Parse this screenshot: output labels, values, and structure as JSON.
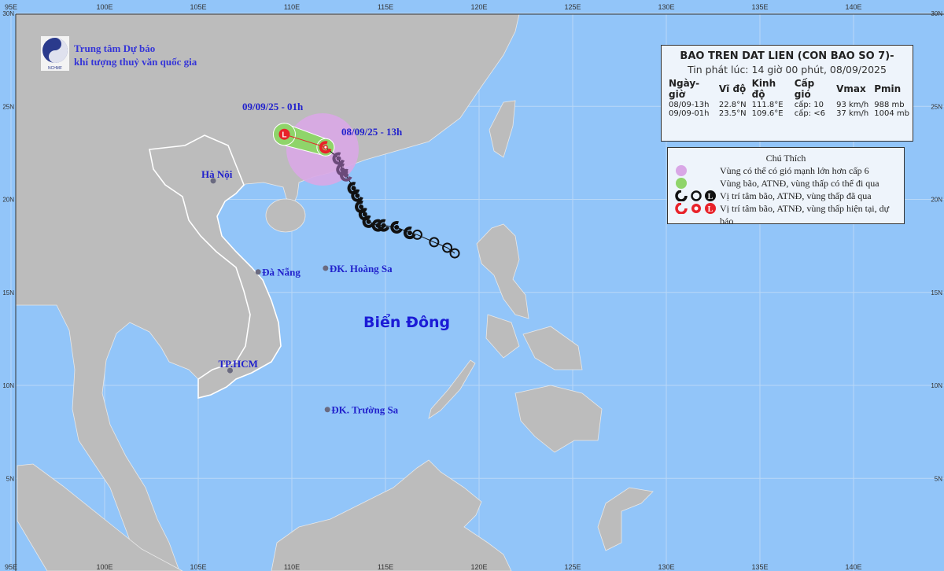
{
  "header": {
    "org_line1": "Trung tâm Dự báo",
    "org_line2": "khí tượng thuỷ văn quốc gia",
    "logo_text": "NCHMF"
  },
  "bulletin": {
    "title": "BAO TREN DAT LIEN (CON BAO SO 7)-",
    "issued": "Tin phát lúc: 14 giờ 00 phút, 08/09/2025",
    "columns": [
      "Ngày-giờ",
      "Vĩ độ",
      "Kinh độ",
      "Cấp gió",
      "Vmax",
      "Pmin"
    ],
    "rows": [
      [
        "08/09-13h",
        "22.8°N",
        "111.8°E",
        "cấp: 10",
        "93 km/h",
        "988 mb"
      ],
      [
        "09/09-01h",
        "23.5°N",
        "109.6°E",
        "cấp: <6",
        "37 km/h",
        "1004 mb"
      ]
    ]
  },
  "legend": {
    "title": "Chú Thích",
    "items": [
      "Vùng có thể có gió mạnh lớn hơn cấp 6",
      "Vùng bão, ATNĐ, vùng thấp có thể đi qua",
      "Vị trí tâm bão, ATNĐ, vùng thấp đã qua",
      "Vị trí tâm bão, ATNĐ, vùng thấp hiện tại, dự báo"
    ]
  },
  "axes": {
    "lon_labels": [
      "95E",
      "100E",
      "105E",
      "110E",
      "115E",
      "120E",
      "125E",
      "130E",
      "135E",
      "140E"
    ],
    "lat_labels": [
      "30N",
      "25N",
      "20N",
      "15N",
      "10N",
      "5N"
    ]
  },
  "labels": {
    "forecast_time": "09/09/25 - 01h",
    "current_time": "08/09/25 - 13h",
    "sea": "Biển Đông",
    "places": [
      {
        "name": "Hà Nội",
        "lat": 21.0,
        "lon": 105.8
      },
      {
        "name": "Đà Nẵng",
        "lat": 16.1,
        "lon": 108.2
      },
      {
        "name": "ĐK. Hoàng Sa",
        "lat": 16.3,
        "lon": 111.8
      },
      {
        "name": "TP.HCM",
        "lat": 10.8,
        "lon": 106.7
      },
      {
        "name": "ĐK. Trường Sa",
        "lat": 8.7,
        "lon": 111.9
      }
    ]
  },
  "track": {
    "current": {
      "lat": 22.8,
      "lon": 111.8
    },
    "forecast": {
      "lat": 23.5,
      "lon": 109.6
    },
    "past": [
      {
        "lat": 22.2,
        "lon": 112.5,
        "type": "storm"
      },
      {
        "lat": 21.6,
        "lon": 112.7,
        "type": "storm"
      },
      {
        "lat": 21.3,
        "lon": 112.9,
        "type": "storm"
      },
      {
        "lat": 20.6,
        "lon": 113.3,
        "type": "storm"
      },
      {
        "lat": 20.2,
        "lon": 113.5,
        "type": "storm"
      },
      {
        "lat": 19.6,
        "lon": 113.7,
        "type": "storm"
      },
      {
        "lat": 19.2,
        "lon": 113.9,
        "type": "storm"
      },
      {
        "lat": 18.8,
        "lon": 114.1,
        "type": "storm"
      },
      {
        "lat": 18.6,
        "lon": 114.6,
        "type": "storm"
      },
      {
        "lat": 18.6,
        "lon": 114.9,
        "type": "storm"
      },
      {
        "lat": 18.5,
        "lon": 115.6,
        "type": "storm"
      },
      {
        "lat": 18.2,
        "lon": 116.3,
        "type": "storm"
      },
      {
        "lat": 18.1,
        "lon": 116.7,
        "type": "depression"
      },
      {
        "lat": 17.7,
        "lon": 117.6,
        "type": "depression"
      },
      {
        "lat": 17.4,
        "lon": 118.3,
        "type": "depression"
      },
      {
        "lat": 17.1,
        "lon": 118.7,
        "type": "depression"
      }
    ]
  },
  "colors": {
    "sea": "#92c5f9",
    "land": "#bcbcbc",
    "wind_zone": "#d9a7e6",
    "storm_zone": "#8fd46a",
    "current_marker": "#e8222a",
    "label_blue": "#2222cc"
  }
}
